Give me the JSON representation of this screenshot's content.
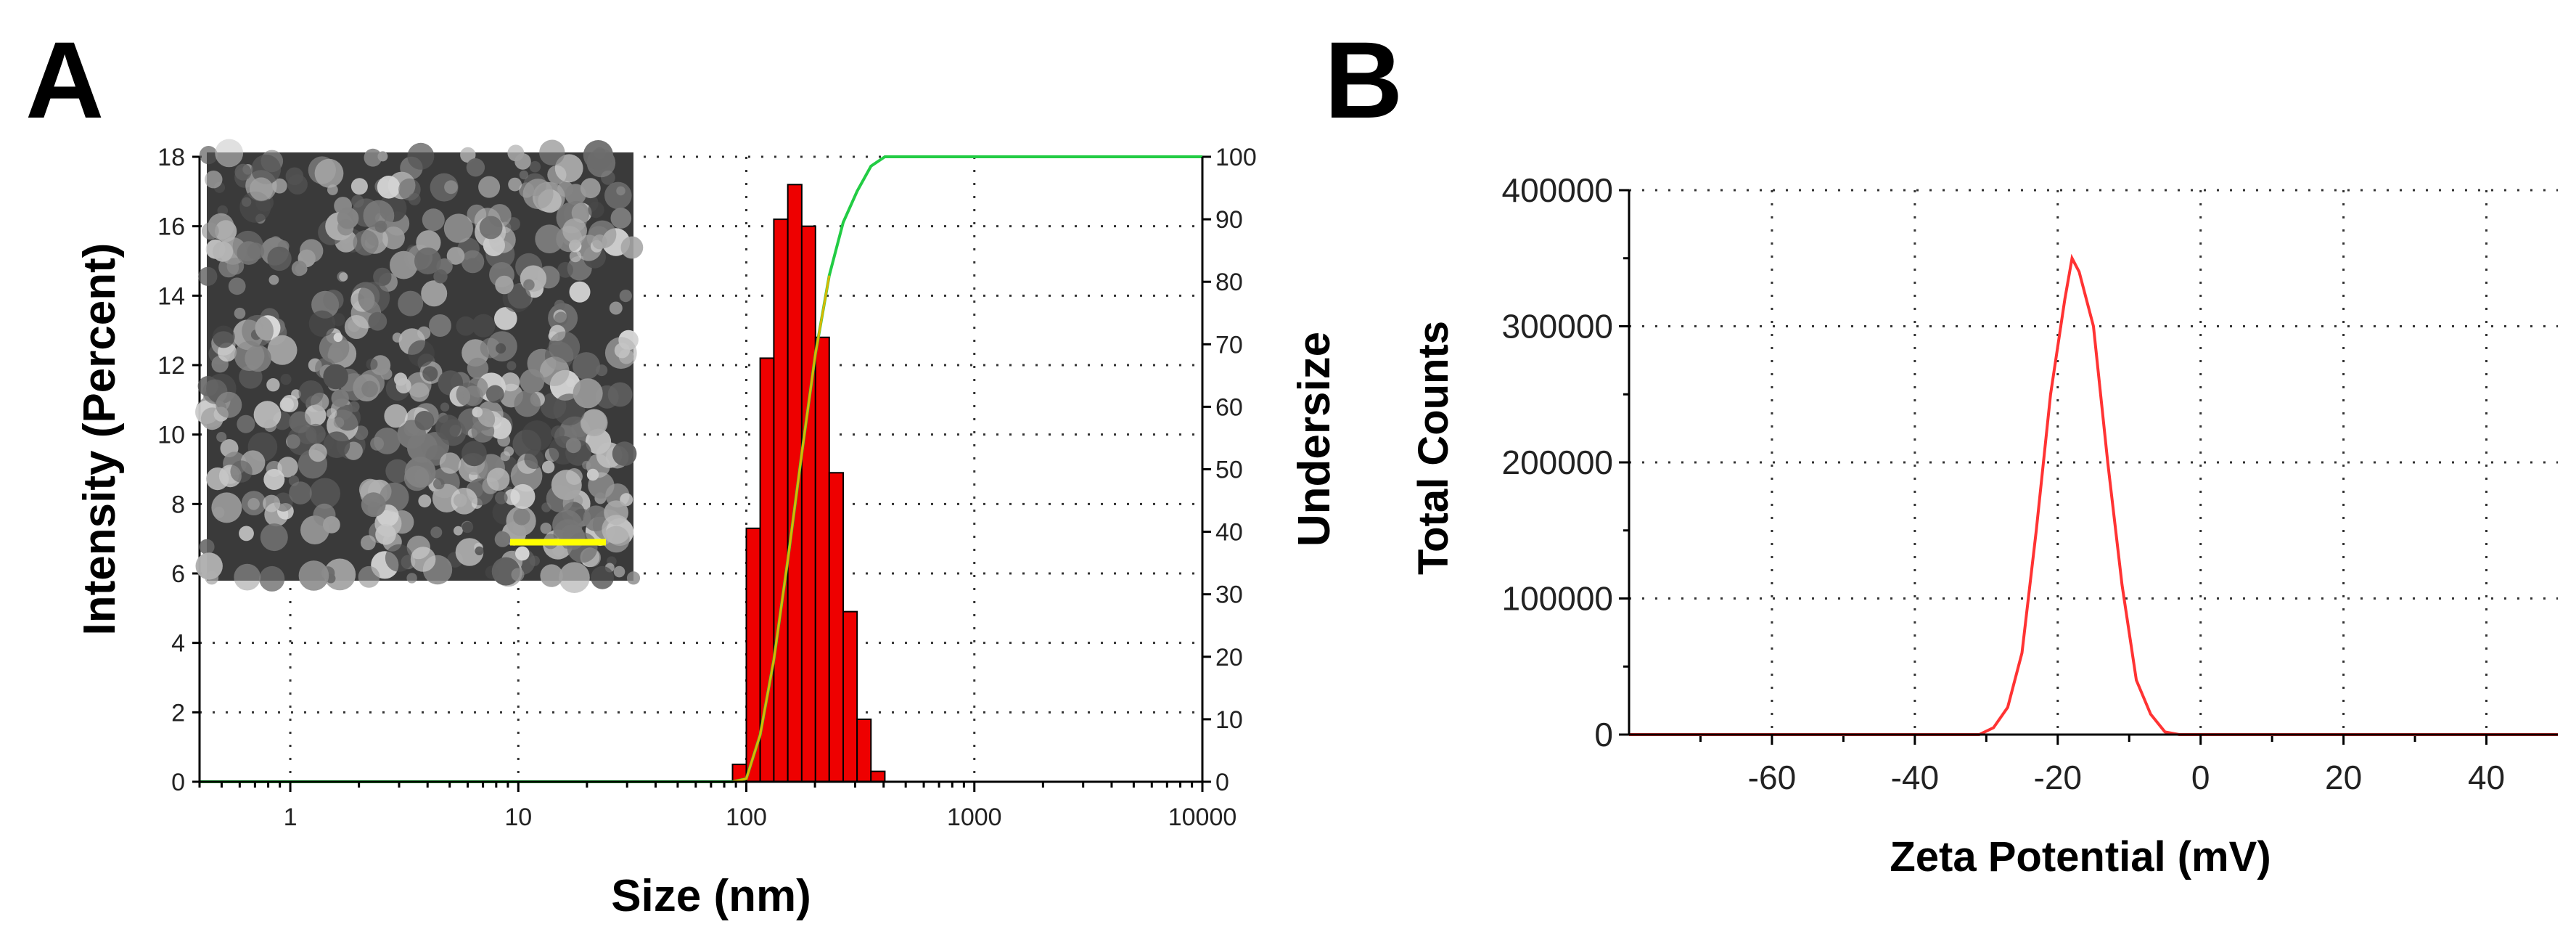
{
  "panels": {
    "a_label": "A",
    "b_label": "B"
  },
  "colors": {
    "bar": "#ee0000",
    "cumulative": "#22cc44",
    "inner_line": "#d9b800",
    "zeta": "#ff3333",
    "scale_bar": "#ffff00"
  },
  "inset": {
    "icon": "sem-micrograph-icon",
    "scale_bar_icon": "scale-bar-icon"
  },
  "chart_data": [
    {
      "type": "bar",
      "xlabel": "Size (nm)",
      "ylabel": "Intensity (Percent)",
      "y2label": "Undersize",
      "xscale": "log",
      "xlim": [
        0.4,
        10000
      ],
      "ylim": [
        0,
        18
      ],
      "y2lim": [
        0,
        100
      ],
      "x_ticks": [
        "1",
        "10",
        "100",
        "1000",
        "10000"
      ],
      "y_ticks": [
        "0",
        "2",
        "4",
        "6",
        "8",
        "10",
        "12",
        "14",
        "16",
        "18"
      ],
      "y2_ticks": [
        "0",
        "10",
        "20",
        "30",
        "40",
        "50",
        "60",
        "70",
        "80",
        "90",
        "100"
      ],
      "grid": true,
      "bars": [
        {
          "x0": 87,
          "x1": 100,
          "value": 0.5
        },
        {
          "x0": 100,
          "x1": 115,
          "value": 7.3
        },
        {
          "x0": 115,
          "x1": 132,
          "value": 12.2
        },
        {
          "x0": 132,
          "x1": 152,
          "value": 16.2
        },
        {
          "x0": 152,
          "x1": 175,
          "value": 17.2
        },
        {
          "x0": 175,
          "x1": 201,
          "value": 16.0
        },
        {
          "x0": 201,
          "x1": 231,
          "value": 12.8
        },
        {
          "x0": 231,
          "x1": 266,
          "value": 8.9
        },
        {
          "x0": 266,
          "x1": 306,
          "value": 4.9
        },
        {
          "x0": 306,
          "x1": 352,
          "value": 1.8
        },
        {
          "x0": 352,
          "x1": 405,
          "value": 0.3
        }
      ],
      "series": [
        {
          "role": "cumulative undersize (right axis)",
          "x": [
            0.4,
            87,
            100,
            115,
            132,
            152,
            175,
            201,
            231,
            266,
            306,
            352,
            405,
            10000
          ],
          "y": [
            0,
            0,
            0.5,
            7.5,
            19.5,
            35.5,
            52.5,
            68.5,
            81,
            89.5,
            94.5,
            98.5,
            100,
            100
          ]
        }
      ]
    },
    {
      "type": "line",
      "xlabel": "Zeta Potential (mV)",
      "ylabel": "Total Counts",
      "xlim": [
        -80,
        50
      ],
      "ylim": [
        0,
        400000
      ],
      "x_ticks": [
        "-60",
        "-40",
        "-20",
        "0",
        "20",
        "40"
      ],
      "y_ticks": [
        "0",
        "100000",
        "200000",
        "300000",
        "400000"
      ],
      "grid": true,
      "series": [
        {
          "x": [
            -80,
            -31,
            -29,
            -27,
            -25,
            -23,
            -21,
            -19,
            -18,
            -17,
            -15,
            -13,
            -11,
            -9,
            -7,
            -5,
            -3,
            50
          ],
          "y": [
            0,
            0,
            5000,
            20000,
            60000,
            150000,
            250000,
            320000,
            350000,
            340000,
            300000,
            200000,
            110000,
            40000,
            15000,
            2000,
            0,
            0
          ]
        }
      ]
    }
  ]
}
